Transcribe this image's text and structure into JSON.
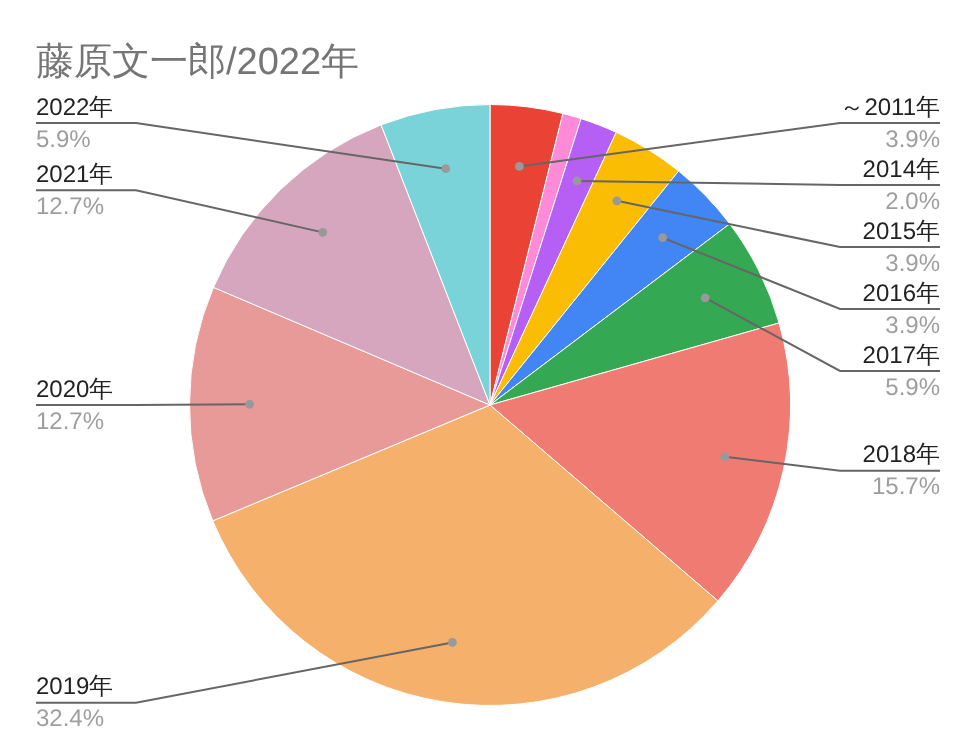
{
  "chart_data": {
    "type": "pie",
    "title": "藤原文一郎/2022年",
    "categories": [
      "～2011年",
      null,
      "2014年",
      "2015年",
      "2016年",
      "2017年",
      "2018年",
      "2019年",
      "2020年",
      "2021年",
      "2022年"
    ],
    "values": [
      3.9,
      1.0,
      2.0,
      3.9,
      3.9,
      5.9,
      15.7,
      32.4,
      12.7,
      12.7,
      5.9
    ],
    "value_labels": [
      "3.9%",
      null,
      "2.0%",
      "3.9%",
      "3.9%",
      "5.9%",
      "15.7%",
      "32.4%",
      "12.7%",
      "12.7%",
      "5.9%"
    ],
    "colors": [
      "#ea4335",
      "#ff8ad8",
      "#b65ff5",
      "#fbbc04",
      "#4285f4",
      "#34a853",
      "#f07b72",
      "#f5b16b",
      "#e89a98",
      "#d5a6bd",
      "#7ad3d8"
    ],
    "legend": false
  }
}
